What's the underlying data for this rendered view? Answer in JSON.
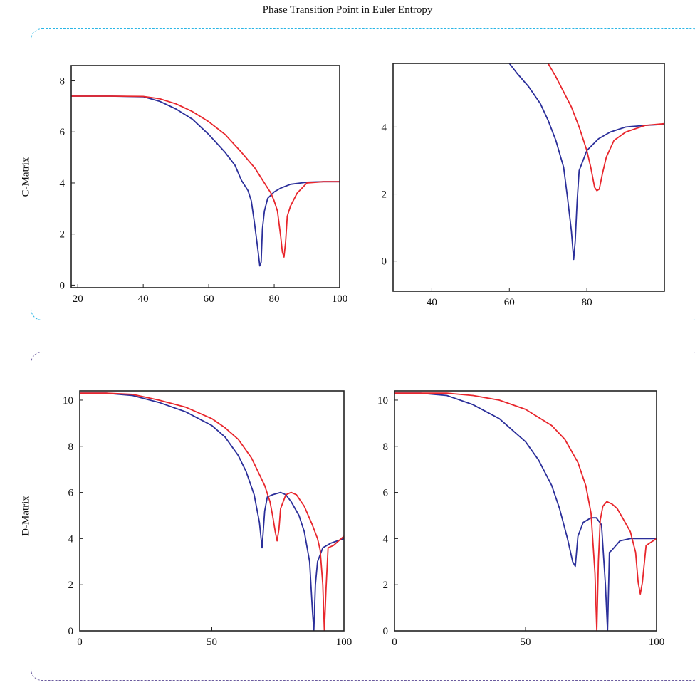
{
  "title": "Phase Transition Point in Euler Entropy",
  "rows": [
    {
      "label": "C-Matrix"
    },
    {
      "label": "D-Matrix"
    }
  ],
  "colors": {
    "series_blue": "#2b2f9a",
    "series_red": "#e8262c",
    "c_group_border": "#29b6e6",
    "d_group_border": "#6a5a9e"
  },
  "chart_data": [
    {
      "type": "line",
      "panel": "C-Matrix left",
      "xlim": [
        18,
        100
      ],
      "ylim": [
        -0.1,
        8.6
      ],
      "xticks": [
        20,
        40,
        60,
        80,
        100
      ],
      "yticks": [
        0,
        2,
        4,
        6,
        8
      ],
      "grid": false,
      "series": [
        {
          "color": "blue",
          "x": [
            18,
            30,
            40,
            45,
            50,
            55,
            60,
            65,
            68,
            70,
            72,
            73,
            74,
            75,
            75.6,
            76,
            76.4,
            77,
            78,
            80,
            82,
            85,
            90,
            95,
            100
          ],
          "y": [
            7.4,
            7.4,
            7.38,
            7.2,
            6.9,
            6.5,
            5.9,
            5.2,
            4.7,
            4.1,
            3.7,
            3.3,
            2.4,
            1.4,
            0.75,
            0.9,
            2.2,
            2.9,
            3.4,
            3.65,
            3.8,
            3.95,
            4.03,
            4.05,
            4.05
          ]
        },
        {
          "color": "red",
          "x": [
            18,
            30,
            40,
            45,
            50,
            55,
            60,
            65,
            70,
            74,
            77,
            79,
            80,
            81,
            82,
            82.5,
            83,
            83.5,
            84,
            85,
            87,
            90,
            95,
            100
          ],
          "y": [
            7.4,
            7.4,
            7.39,
            7.3,
            7.1,
            6.8,
            6.4,
            5.9,
            5.2,
            4.6,
            4.0,
            3.6,
            3.3,
            2.9,
            1.9,
            1.3,
            1.1,
            1.7,
            2.7,
            3.1,
            3.6,
            4.0,
            4.05,
            4.05
          ]
        }
      ]
    },
    {
      "type": "line",
      "panel": "C-Matrix right",
      "xlim": [
        30,
        100
      ],
      "ylim": [
        -0.9,
        5.9
      ],
      "xticks": [
        40,
        60,
        80
      ],
      "yticks": [
        0,
        2,
        4
      ],
      "grid": false,
      "series": [
        {
          "color": "blue",
          "x": [
            60,
            62,
            65,
            68,
            70,
            72,
            74,
            75,
            76,
            76.6,
            77,
            77.5,
            78,
            80,
            83,
            86,
            90,
            95,
            100
          ],
          "y": [
            5.9,
            5.6,
            5.2,
            4.7,
            4.2,
            3.6,
            2.8,
            1.9,
            0.9,
            0.05,
            0.6,
            1.8,
            2.7,
            3.3,
            3.65,
            3.85,
            4.0,
            4.05,
            4.08
          ]
        },
        {
          "color": "red",
          "x": [
            70,
            72,
            74,
            76,
            78,
            80,
            81,
            82,
            82.6,
            83.2,
            84,
            85,
            87,
            90,
            95,
            100
          ],
          "y": [
            5.9,
            5.5,
            5.05,
            4.6,
            4.0,
            3.3,
            2.8,
            2.2,
            2.1,
            2.15,
            2.6,
            3.1,
            3.6,
            3.85,
            4.05,
            4.1
          ]
        }
      ]
    },
    {
      "type": "line",
      "panel": "D-Matrix left",
      "xlim": [
        0,
        100
      ],
      "ylim": [
        0,
        10.4
      ],
      "xticks": [
        0,
        50,
        100
      ],
      "yticks": [
        0,
        2,
        4,
        6,
        8,
        10
      ],
      "grid": false,
      "series": [
        {
          "color": "blue",
          "x": [
            0,
            10,
            20,
            30,
            40,
            50,
            55,
            60,
            63,
            66,
            68,
            69,
            70,
            71,
            73,
            76,
            78,
            80,
            83,
            85,
            87,
            88,
            88.6,
            89.2,
            90,
            92,
            95,
            100
          ],
          "y": [
            10.3,
            10.3,
            10.2,
            9.9,
            9.5,
            8.9,
            8.4,
            7.6,
            6.9,
            5.9,
            4.7,
            3.6,
            5.2,
            5.8,
            5.9,
            6.0,
            5.9,
            5.6,
            5.0,
            4.3,
            3.0,
            1.0,
            0.0,
            2.0,
            3.0,
            3.6,
            3.8,
            4.0
          ]
        },
        {
          "color": "red",
          "x": [
            0,
            10,
            20,
            30,
            40,
            50,
            55,
            60,
            65,
            70,
            72,
            73,
            74,
            74.7,
            75.4,
            76,
            78,
            80,
            82,
            85,
            88,
            90,
            91,
            92,
            92.6,
            93.2,
            94,
            96,
            100
          ],
          "y": [
            10.3,
            10.3,
            10.25,
            10.0,
            9.7,
            9.2,
            8.8,
            8.3,
            7.5,
            6.3,
            5.6,
            5.0,
            4.3,
            3.9,
            4.4,
            5.3,
            5.9,
            6.0,
            5.9,
            5.4,
            4.6,
            4.0,
            3.5,
            2.0,
            0.0,
            1.8,
            3.6,
            3.7,
            4.1
          ]
        }
      ]
    },
    {
      "type": "line",
      "panel": "D-Matrix right",
      "xlim": [
        0,
        100
      ],
      "ylim": [
        0,
        10.4
      ],
      "xticks": [
        0,
        50,
        100
      ],
      "yticks": [
        0,
        2,
        4,
        6,
        8,
        10
      ],
      "grid": false,
      "series": [
        {
          "color": "blue",
          "x": [
            0,
            10,
            20,
            30,
            40,
            50,
            55,
            60,
            63,
            66,
            68,
            69,
            70,
            72,
            75,
            77,
            79,
            80.5,
            81.3,
            82,
            83,
            86,
            90,
            95,
            100
          ],
          "y": [
            10.3,
            10.3,
            10.2,
            9.8,
            9.2,
            8.2,
            7.4,
            6.3,
            5.3,
            4.0,
            3.0,
            2.8,
            4.1,
            4.7,
            4.9,
            4.9,
            4.6,
            2.0,
            0.0,
            3.4,
            3.5,
            3.9,
            4.0,
            4.0,
            4.0
          ]
        },
        {
          "color": "red",
          "x": [
            0,
            10,
            20,
            30,
            40,
            50,
            60,
            65,
            70,
            73,
            75,
            76.5,
            77.2,
            77.8,
            78.5,
            79.5,
            81,
            83,
            85,
            87,
            90,
            92,
            93,
            93.8,
            94.6,
            96,
            100
          ],
          "y": [
            10.3,
            10.3,
            10.3,
            10.2,
            10.0,
            9.6,
            8.9,
            8.3,
            7.3,
            6.3,
            5.1,
            2.5,
            0.0,
            3.0,
            4.8,
            5.4,
            5.6,
            5.5,
            5.3,
            4.9,
            4.3,
            3.4,
            2.1,
            1.6,
            2.1,
            3.7,
            4.0
          ]
        }
      ]
    }
  ]
}
